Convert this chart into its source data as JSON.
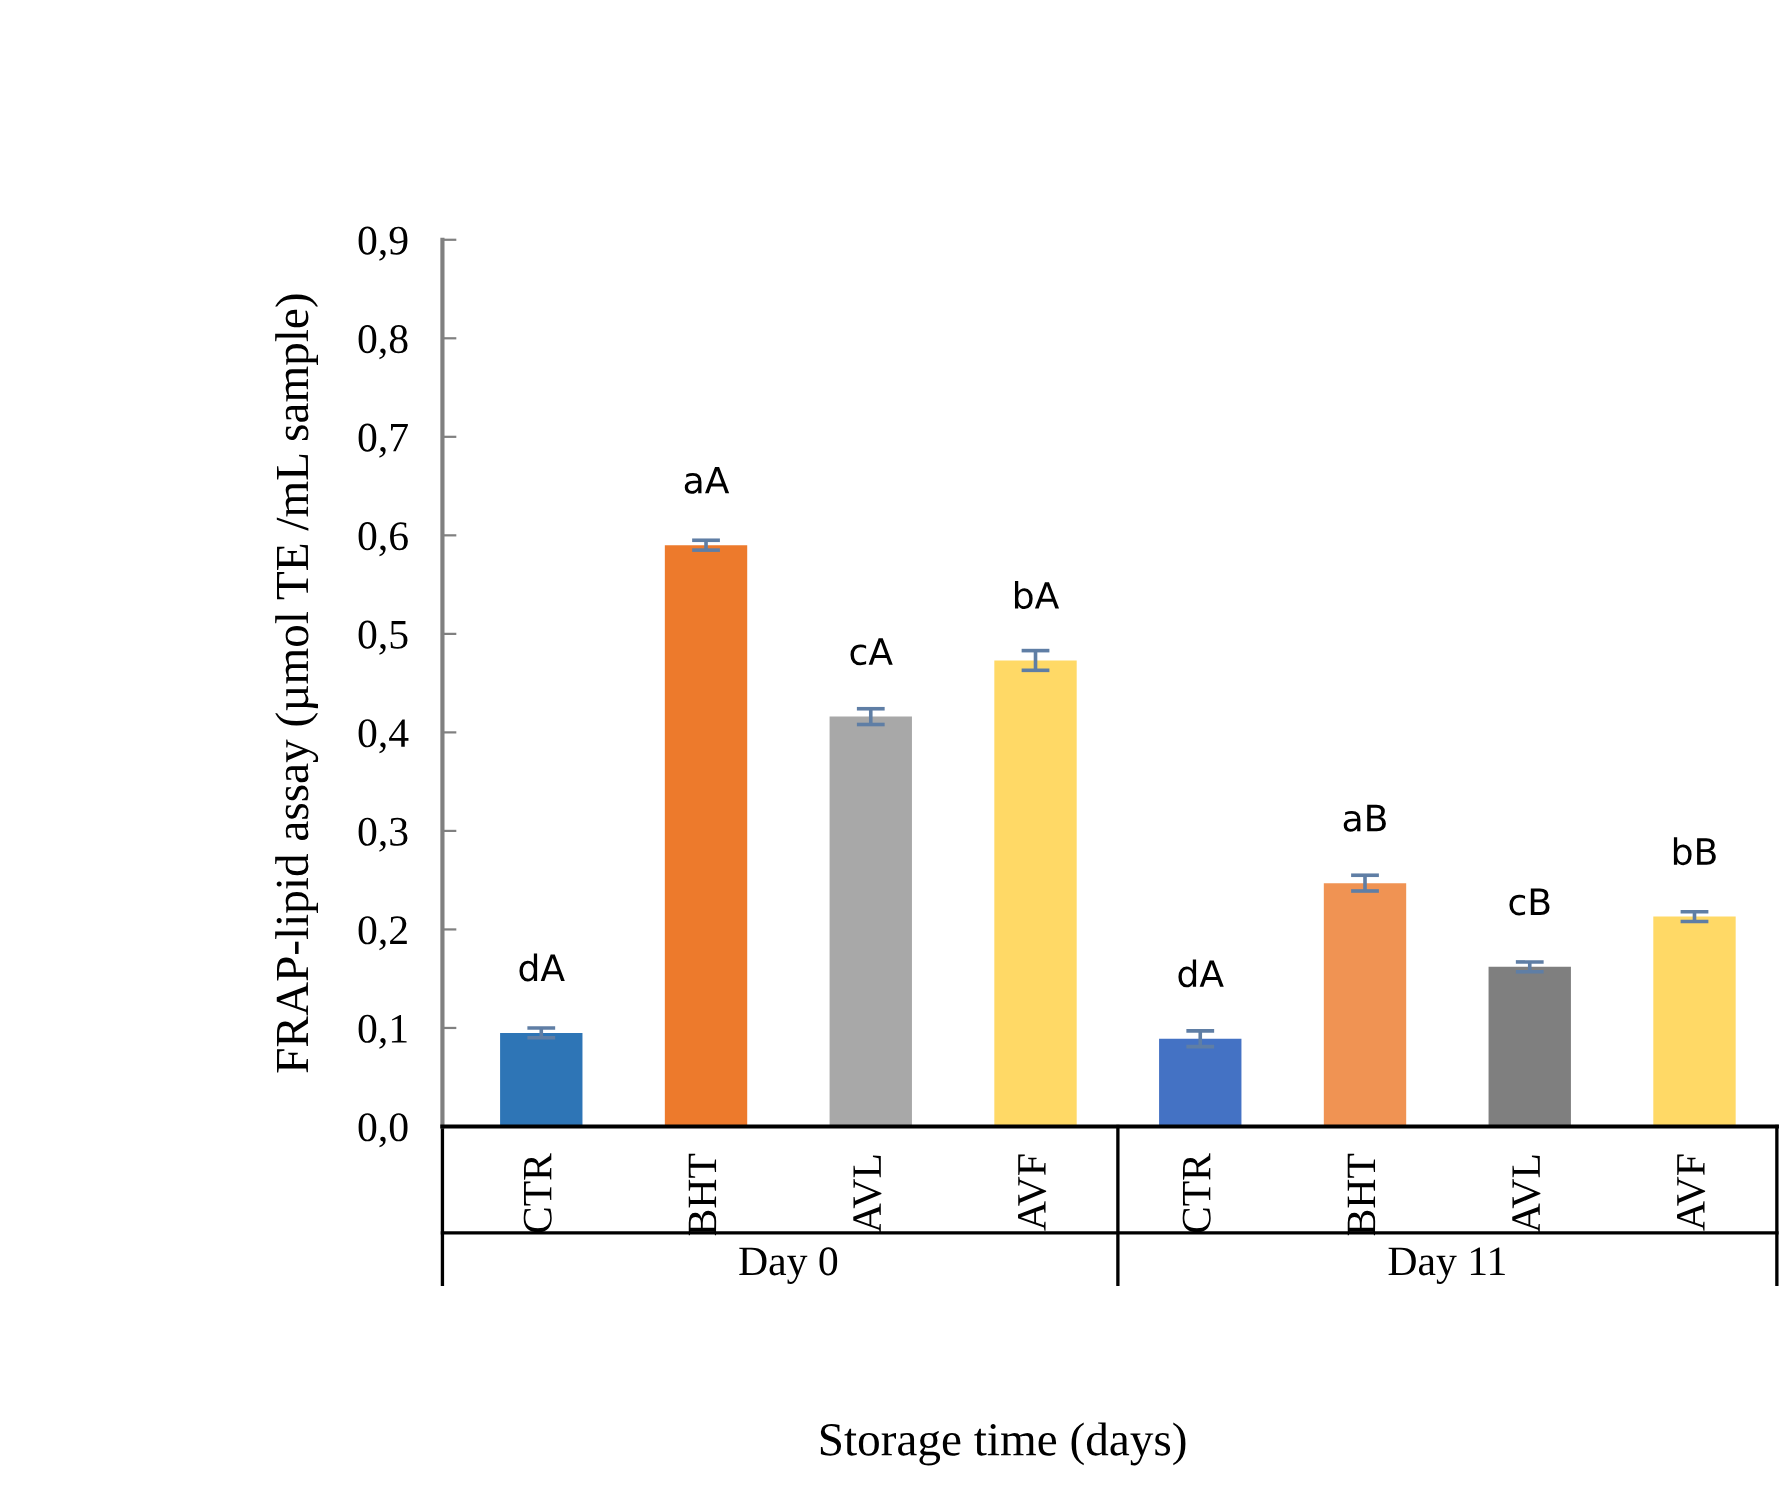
{
  "chart_data": {
    "type": "bar",
    "ylabel": "FRAP-lipid assay (µmol TE /mL sample)",
    "xlabel": "Storage time (days)",
    "categories": [
      "CTR",
      "BHT",
      "AVL",
      "AVF",
      "CTR",
      "BHT",
      "AVL",
      "AVF"
    ],
    "values": [
      0.095,
      0.59,
      0.416,
      0.473,
      0.089,
      0.247,
      0.162,
      0.213
    ],
    "errors": [
      0.005,
      0.005,
      0.008,
      0.01,
      0.008,
      0.008,
      0.005,
      0.005
    ],
    "colors": [
      "#2e75b6",
      "#ed7a2c",
      "#a8a8a8",
      "#ffd966",
      "#4472c4",
      "#f09353",
      "#7f7f7f",
      "#ffd966"
    ],
    "ylim": [
      0,
      0.9
    ],
    "yticks": [
      {
        "value": 0,
        "label": "0,0"
      },
      {
        "value": 0.1,
        "label": "0,1"
      },
      {
        "value": 0.2,
        "label": "0,2"
      },
      {
        "value": 0.3,
        "label": "0,3"
      },
      {
        "value": 0.4,
        "label": "0,4"
      },
      {
        "value": 0.5,
        "label": "0,5"
      },
      {
        "value": 0.6,
        "label": "0,6"
      },
      {
        "value": 0.7,
        "label": "0,7"
      },
      {
        "value": 0.8,
        "label": "0,8"
      },
      {
        "value": 0.9,
        "label": "0,9"
      }
    ],
    "grid": false,
    "legend": false,
    "value_labels": [
      "dA",
      "aA",
      "cA",
      "bA",
      "dA",
      "aB",
      "cB",
      "bB"
    ],
    "annotations": [
      "Day 0",
      "Day 11"
    ]
  }
}
